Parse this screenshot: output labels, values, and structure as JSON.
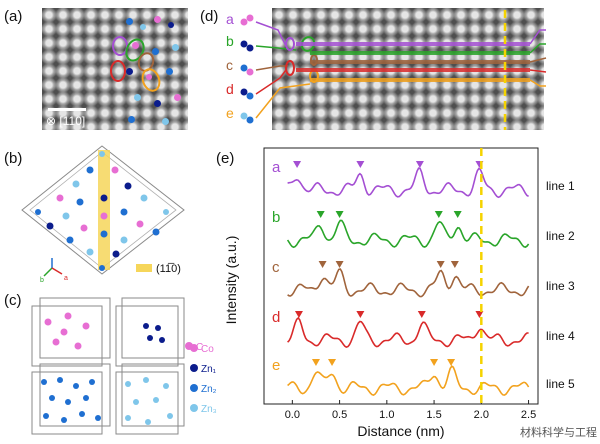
{
  "panels": {
    "a": {
      "label": "(a)",
      "scalebar_direction": "[110]",
      "direction_symbol": "⊗"
    },
    "b": {
      "label": "(b)",
      "plane_label": "(11̅0)"
    },
    "c": {
      "label": "(c)",
      "legend": [
        "Co",
        "Zn₁",
        "Zn₂",
        "Zn₃"
      ]
    },
    "d": {
      "label": "(d)",
      "row_letters": [
        "a",
        "b",
        "c",
        "d",
        "e"
      ],
      "line_labels": [
        "line 1",
        "line 2",
        "line 3",
        "line 4",
        "line 5"
      ]
    },
    "e": {
      "label": "(e)"
    }
  },
  "colors": {
    "line1": "#a44fd3",
    "line2": "#2aa52a",
    "line3": "#a0643c",
    "line4": "#d92a2a",
    "line5": "#f2a21e",
    "co": "#e76ed3",
    "zn1": "#0b1c8c",
    "zn2": "#1f6fd1",
    "zn3": "#7fc6ea",
    "dashed": "#f5d300"
  },
  "chart_data": {
    "type": "line",
    "xlabel": "Distance (nm)",
    "ylabel": "Intensity (a.u.)",
    "xlim": [
      -0.3,
      2.6
    ],
    "xticks": [
      "0.0",
      "0.5",
      "1.0",
      "1.5",
      "2.0",
      "2.5"
    ],
    "xtick_values": [
      0.0,
      0.5,
      1.0,
      1.5,
      2.0,
      2.5
    ],
    "dashed_x": 2.0,
    "series": [
      {
        "name": "line 1",
        "letter": "a",
        "peaks": [
          0.05,
          0.72,
          1.35,
          1.98
        ]
      },
      {
        "name": "line 2",
        "letter": "b",
        "peaks": [
          0.3,
          0.5,
          1.55,
          1.75
        ]
      },
      {
        "name": "line 3",
        "letter": "c",
        "peaks": [
          0.32,
          0.5,
          1.57,
          1.72
        ]
      },
      {
        "name": "line 4",
        "letter": "d",
        "peaks": [
          0.07,
          0.72,
          1.37,
          1.98
        ]
      },
      {
        "name": "line 5",
        "letter": "e",
        "peaks": [
          0.25,
          0.42,
          1.5,
          1.68
        ]
      }
    ]
  },
  "watermark": "材料科学与工程"
}
